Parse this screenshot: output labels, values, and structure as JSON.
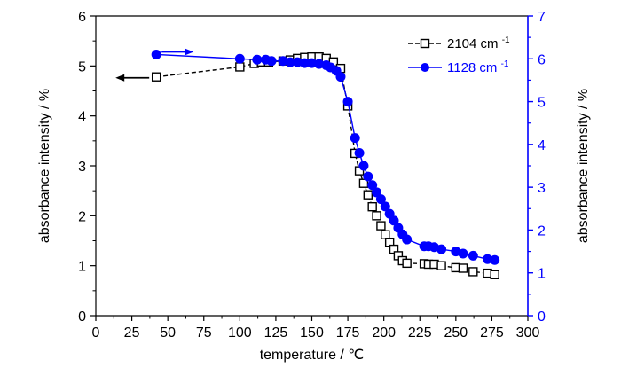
{
  "chart_data": {
    "type": "scatter",
    "xlabel": "temperature / ℃",
    "ylabel_left": "absorbance intensity / %",
    "ylabel_right": "absorbance intensity / %",
    "xlim": [
      0,
      300
    ],
    "ylim_left": [
      0,
      6
    ],
    "ylim_right": [
      0,
      7
    ],
    "x_ticks": [
      "0",
      "25",
      "50",
      "75",
      "100",
      "125",
      "150",
      "175",
      "200",
      "225",
      "250",
      "275",
      "300"
    ],
    "y_left_ticks": [
      "0",
      "1",
      "2",
      "3",
      "4",
      "5",
      "6"
    ],
    "y_right_ticks": [
      "0",
      "1",
      "2",
      "3",
      "4",
      "5",
      "6",
      "7"
    ],
    "grid": false,
    "legend_position": "top-right",
    "colors": {
      "series_black": "#000000",
      "series_blue": "#0000ff"
    },
    "series": [
      {
        "name_base": "2104 cm",
        "name_sup": "-1",
        "axis": "left",
        "marker": "open-square",
        "color": "#000000",
        "x": [
          42,
          100,
          110,
          115,
          120,
          130,
          135,
          140,
          145,
          150,
          155,
          160,
          165,
          170,
          175,
          180,
          183,
          186,
          189,
          192,
          195,
          198,
          201,
          204,
          207,
          210,
          213,
          216,
          228,
          231,
          235,
          240,
          250,
          255,
          262,
          272,
          277
        ],
        "y": [
          4.78,
          4.98,
          5.05,
          5.08,
          5.08,
          5.1,
          5.12,
          5.15,
          5.17,
          5.18,
          5.18,
          5.15,
          5.08,
          4.95,
          4.2,
          3.25,
          2.9,
          2.65,
          2.42,
          2.18,
          2.0,
          1.8,
          1.62,
          1.47,
          1.33,
          1.2,
          1.1,
          1.05,
          1.04,
          1.03,
          1.03,
          1.0,
          0.96,
          0.95,
          0.88,
          0.85,
          0.82
        ]
      },
      {
        "name_base": "1128 cm",
        "name_sup": "-1",
        "axis": "right",
        "marker": "filled-circle",
        "color": "#0000ff",
        "x": [
          42,
          100,
          112,
          118,
          122,
          130,
          135,
          140,
          145,
          150,
          155,
          160,
          163,
          167,
          170,
          175,
          180,
          183,
          186,
          189,
          192,
          195,
          198,
          201,
          204,
          207,
          210,
          213,
          216,
          228,
          231,
          235,
          240,
          250,
          255,
          262,
          272,
          277
        ],
        "y": [
          6.1,
          6.0,
          5.98,
          5.98,
          5.95,
          5.95,
          5.92,
          5.92,
          5.9,
          5.9,
          5.88,
          5.85,
          5.8,
          5.72,
          5.58,
          5.0,
          4.15,
          3.8,
          3.5,
          3.25,
          3.05,
          2.88,
          2.72,
          2.55,
          2.38,
          2.22,
          2.05,
          1.9,
          1.78,
          1.62,
          1.62,
          1.6,
          1.55,
          1.5,
          1.45,
          1.4,
          1.32,
          1.3
        ]
      }
    ]
  }
}
